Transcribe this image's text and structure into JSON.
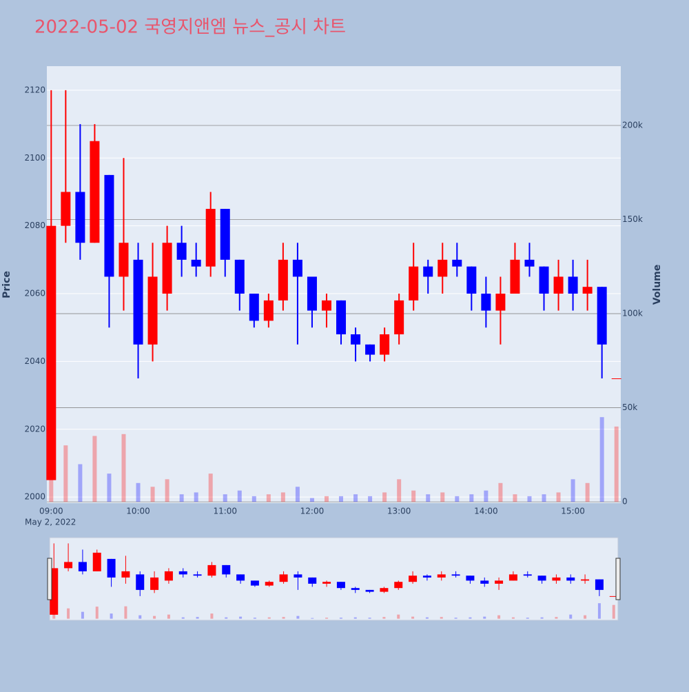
{
  "chart_data": {
    "type": "candlestick",
    "title": "2022-05-02 국영지앤엠 뉴스_공시 차트",
    "x_date_label": "May 2, 2022",
    "ylabel": "Price",
    "y2label": "Volume",
    "x": [
      "09:00",
      "09:10",
      "09:20",
      "09:30",
      "09:40",
      "09:50",
      "10:00",
      "10:10",
      "10:20",
      "10:30",
      "10:40",
      "10:50",
      "11:00",
      "11:10",
      "11:20",
      "11:30",
      "11:40",
      "11:50",
      "12:00",
      "12:10",
      "12:20",
      "12:30",
      "12:40",
      "12:50",
      "13:00",
      "13:10",
      "13:20",
      "13:30",
      "13:40",
      "13:50",
      "14:00",
      "14:10",
      "14:20",
      "14:30",
      "14:40",
      "14:50",
      "15:00",
      "15:10",
      "15:20",
      "15:30"
    ],
    "open": [
      2005,
      2080,
      2090,
      2075,
      2095,
      2065,
      2070,
      2045,
      2060,
      2075,
      2070,
      2068,
      2085,
      2070,
      2060,
      2052,
      2058,
      2070,
      2065,
      2055,
      2058,
      2048,
      2045,
      2042,
      2048,
      2058,
      2068,
      2065,
      2070,
      2068,
      2060,
      2055,
      2060,
      2070,
      2068,
      2060,
      2065,
      2060,
      2062,
      2035
    ],
    "high": [
      2120,
      2120,
      2110,
      2110,
      2095,
      2100,
      2075,
      2075,
      2080,
      2080,
      2075,
      2090,
      2085,
      2070,
      2060,
      2060,
      2075,
      2075,
      2065,
      2060,
      2058,
      2050,
      2045,
      2050,
      2060,
      2075,
      2070,
      2075,
      2075,
      2068,
      2065,
      2065,
      2075,
      2075,
      2068,
      2070,
      2070,
      2070,
      2062,
      2035
    ],
    "low": [
      2005,
      2075,
      2070,
      2075,
      2050,
      2055,
      2035,
      2040,
      2055,
      2065,
      2065,
      2065,
      2065,
      2055,
      2050,
      2050,
      2055,
      2045,
      2050,
      2050,
      2045,
      2040,
      2040,
      2040,
      2045,
      2055,
      2060,
      2060,
      2065,
      2055,
      2050,
      2045,
      2060,
      2065,
      2055,
      2055,
      2055,
      2055,
      2035,
      2035
    ],
    "close": [
      2080,
      2090,
      2075,
      2105,
      2065,
      2075,
      2045,
      2065,
      2075,
      2070,
      2068,
      2085,
      2070,
      2060,
      2052,
      2058,
      2070,
      2065,
      2055,
      2058,
      2048,
      2045,
      2042,
      2048,
      2058,
      2068,
      2065,
      2070,
      2068,
      2060,
      2055,
      2060,
      2070,
      2068,
      2060,
      2065,
      2060,
      2062,
      2045,
      2035
    ],
    "volume": [
      60000,
      30000,
      20000,
      35000,
      15000,
      36000,
      10000,
      8000,
      12000,
      4000,
      5000,
      15000,
      4000,
      6000,
      3000,
      4000,
      5000,
      8000,
      2000,
      3000,
      3000,
      4000,
      3000,
      5000,
      12000,
      6000,
      4000,
      5000,
      3000,
      4000,
      6000,
      10000,
      4000,
      3000,
      4000,
      5000,
      12000,
      10000,
      45000,
      40000
    ],
    "increasing_color": "#ff0000",
    "decreasing_color": "#0000ff",
    "xlim": [
      "08:57",
      "15:33"
    ],
    "xticks": [
      "09:00",
      "10:00",
      "11:00",
      "12:00",
      "13:00",
      "14:00",
      "15:00"
    ],
    "ylim": [
      1998.2,
      2127.1
    ],
    "yticks": [
      2000,
      2020,
      2040,
      2060,
      2080,
      2100,
      2120
    ],
    "y2lim": [
      -700,
      231500
    ],
    "y2ticks": [
      0,
      {
        "value": 50000,
        "label": "50k"
      },
      {
        "value": 100000,
        "label": "100k"
      },
      {
        "value": 150000,
        "label": "150k"
      },
      {
        "value": 200000,
        "label": "200k"
      }
    ],
    "rangeslider": true
  }
}
